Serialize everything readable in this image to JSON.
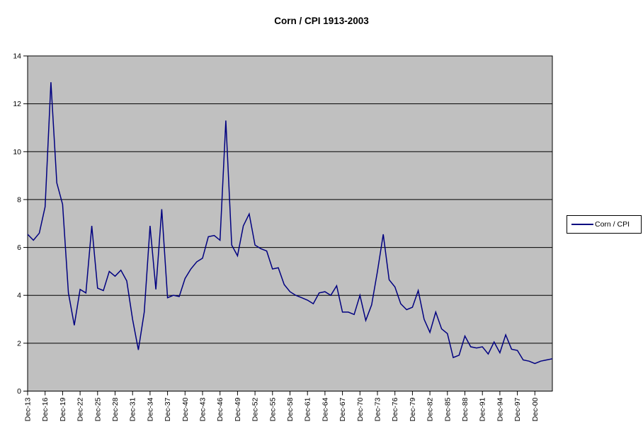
{
  "chart_data": {
    "type": "line",
    "title": "Corn / CPI 1913-2003",
    "legend": {
      "label": "Corn / CPI",
      "position": "right"
    },
    "grid": "horizontal",
    "ylim": [
      0,
      14
    ],
    "y_ticks": [
      0,
      2,
      4,
      6,
      8,
      10,
      12,
      14
    ],
    "x_tick_interval": 3,
    "x_tick_labels": [
      "Dec-13",
      "Dec-16",
      "Dec-19",
      "Dec-22",
      "Dec-25",
      "Dec-28",
      "Dec-31",
      "Dec-34",
      "Dec-37",
      "Dec-40",
      "Dec-43",
      "Dec-46",
      "Dec-49",
      "Dec-52",
      "Dec-55",
      "Dec-58",
      "Dec-61",
      "Dec-64",
      "Dec-67",
      "Dec-70",
      "Dec-73",
      "Dec-76",
      "Dec-79",
      "Dec-82",
      "Dec-85",
      "Dec-88",
      "Dec-91",
      "Dec-94",
      "Dec-97",
      "Dec-00"
    ],
    "series": [
      {
        "name": "Corn / CPI",
        "points_yearly_from": "Dec-13",
        "points_yearly_to": "Dec-03",
        "values": [
          6.55,
          6.3,
          6.6,
          7.7,
          12.9,
          8.7,
          7.8,
          4.1,
          2.75,
          4.25,
          4.1,
          6.9,
          4.3,
          4.2,
          5.0,
          4.8,
          5.05,
          4.6,
          3.0,
          1.72,
          3.3,
          6.9,
          4.25,
          7.6,
          3.9,
          4.0,
          3.95,
          4.7,
          5.1,
          5.4,
          5.55,
          6.45,
          6.5,
          6.3,
          11.3,
          6.1,
          5.65,
          6.9,
          7.4,
          6.1,
          5.95,
          5.85,
          5.1,
          5.15,
          4.45,
          4.15,
          4.0,
          3.9,
          3.8,
          3.65,
          4.1,
          4.15,
          4.0,
          4.4,
          3.3,
          3.3,
          3.2,
          4.0,
          2.95,
          3.6,
          5.0,
          6.55,
          4.65,
          4.35,
          3.65,
          3.4,
          3.5,
          4.2,
          3.0,
          2.45,
          3.3,
          2.6,
          2.4,
          1.4,
          1.5,
          2.3,
          1.85,
          1.8,
          1.85,
          1.55,
          2.05,
          1.6,
          2.35,
          1.75,
          1.7,
          1.3,
          1.25,
          1.15,
          1.25,
          1.3,
          1.35
        ]
      }
    ],
    "colors": {
      "line": "#000080",
      "plot_bg": "#C0C0C0",
      "grid": "#000000",
      "axis": "#000000",
      "page_bg": "#FFFFFF"
    }
  }
}
